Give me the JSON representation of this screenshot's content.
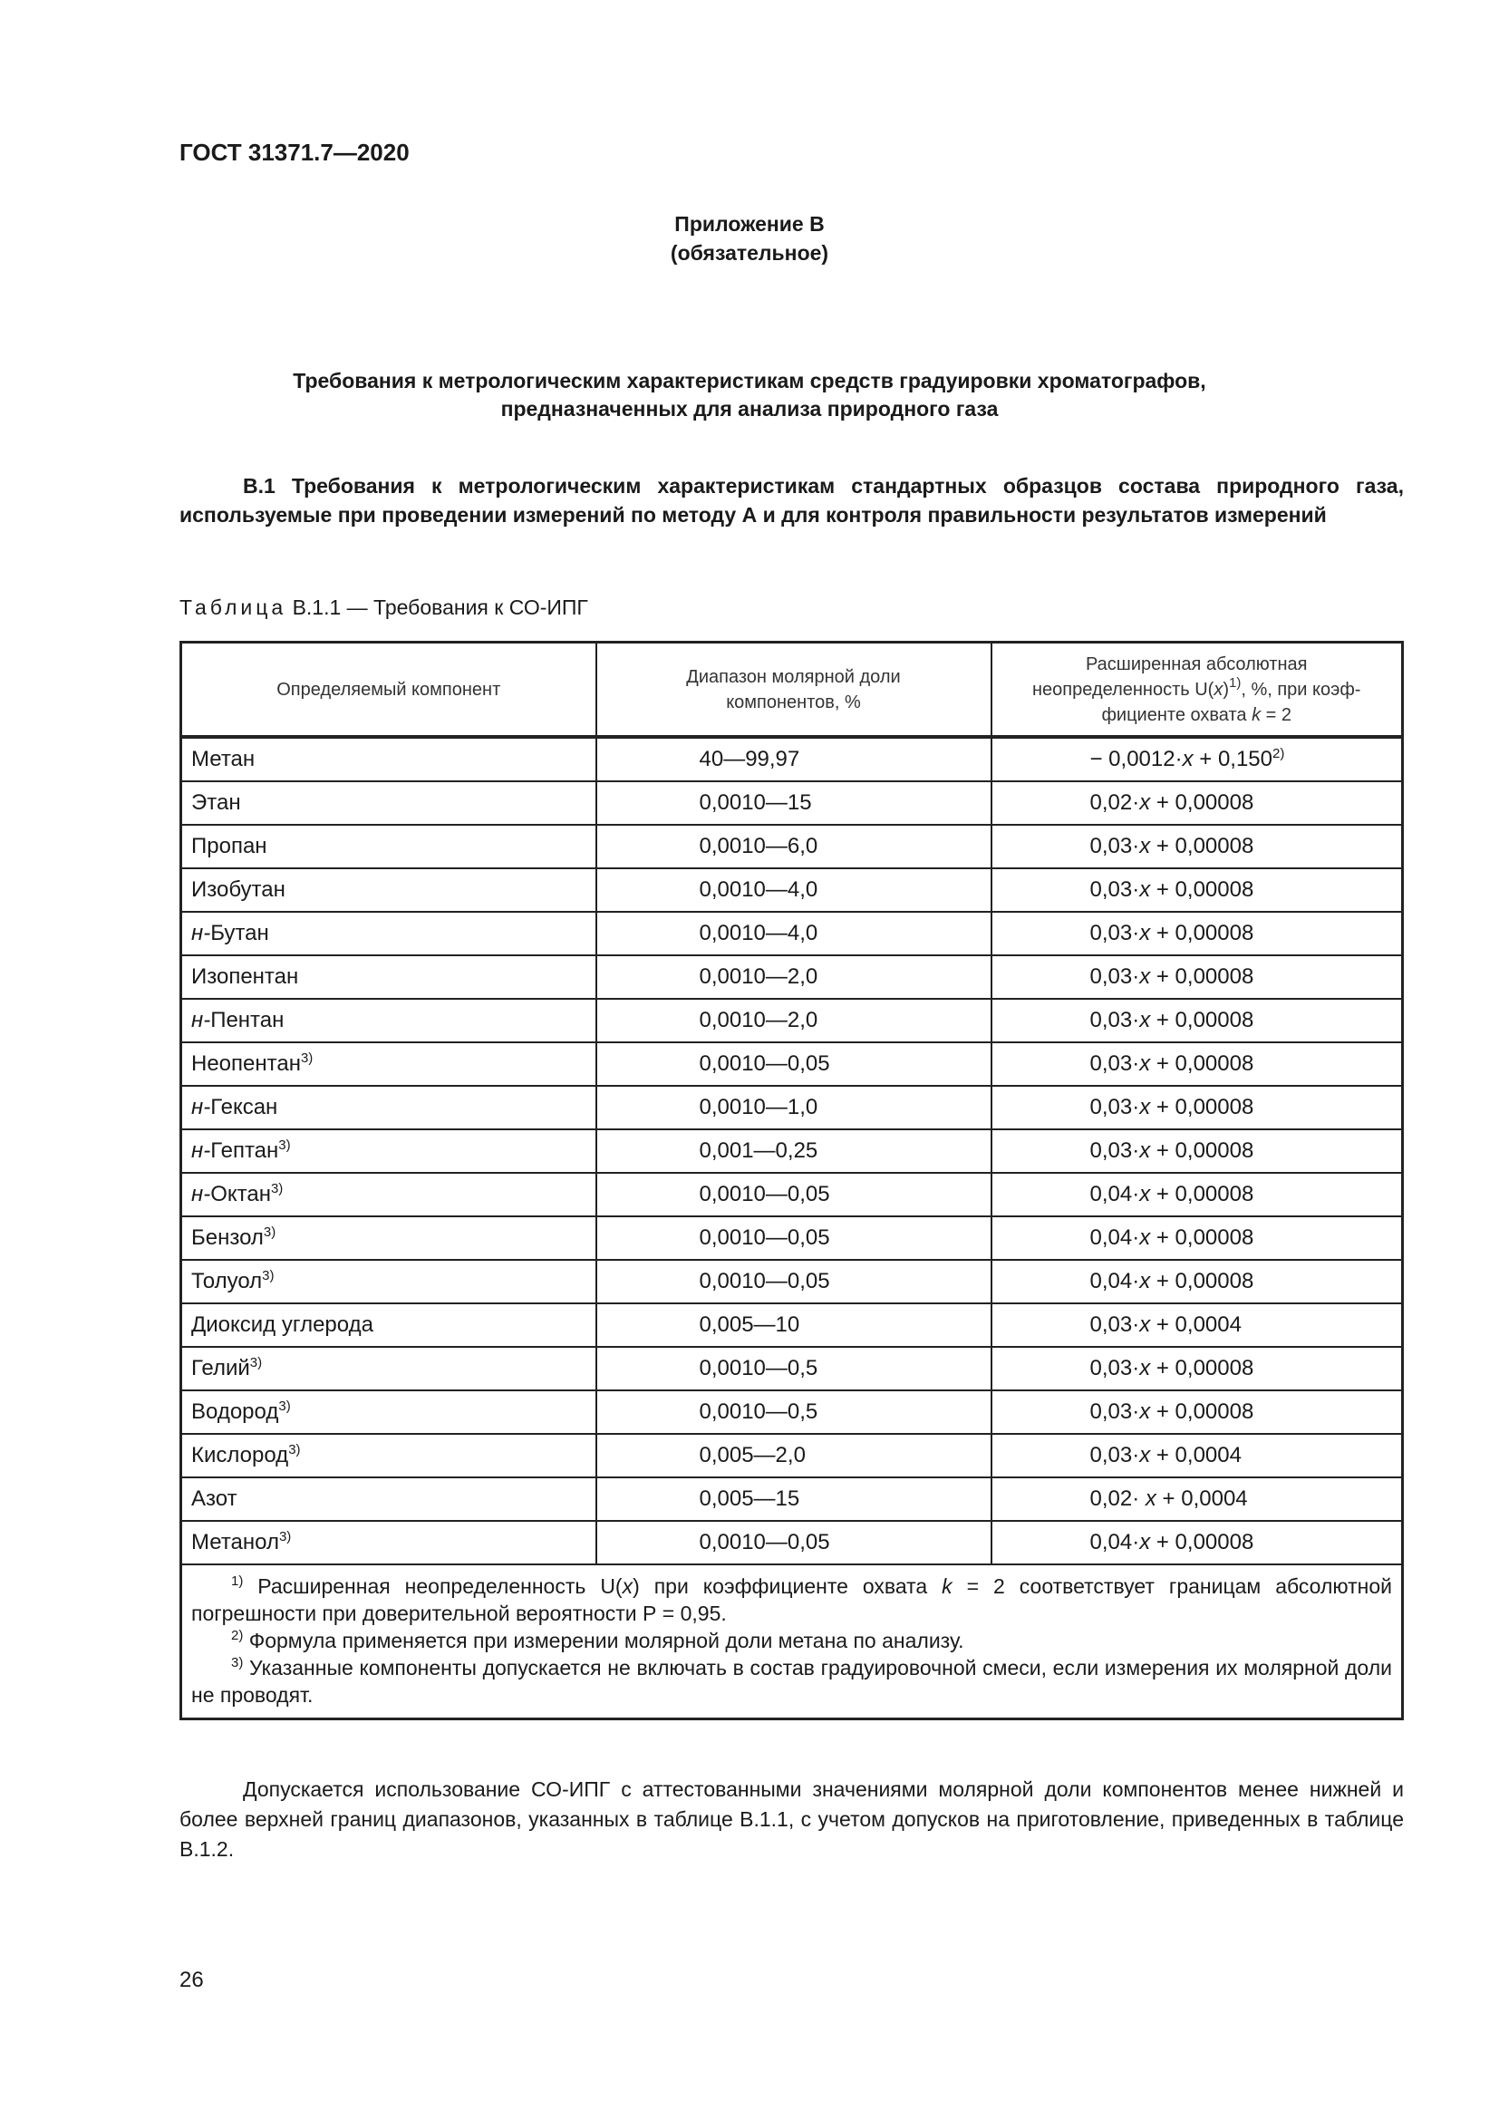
{
  "header": {
    "doc_id": "ГОСТ 31371.7—2020"
  },
  "annex": {
    "title": "Приложение В",
    "status": "(обязательное)"
  },
  "heading": "Требования к метрологическим характеристикам средств градуировки хроматографов, предназначенных для анализа природного газа",
  "section_b1": "В.1 Требования к метрологическим характеристикам стандартных образцов состава природного газа, используемые при проведении измерений по методу А и для контроля правильности результатов измерений",
  "table": {
    "caption_prefix": "Таблица",
    "caption_rest": " В.1.1 — Требования к СО-ИПГ",
    "headers": {
      "col1": "Определяемый компонент",
      "col2": "Диапазон молярной доли компонентов, %",
      "col3_a": "Расширенная абсолютная неопределенность U(",
      "col3_var": "x",
      "col3_b": ")",
      "col3_sup": "1)",
      "col3_c": ", %, при коэф­фициенте охвата ",
      "col3_k": "k",
      "col3_d": " = 2"
    },
    "rows": [
      {
        "prefix": "",
        "name": "Метан",
        "sup": "",
        "range": "40—99,97",
        "coef": "− 0,0012·",
        "var": "x",
        "rest": " + 0,150",
        "fsup": "2)"
      },
      {
        "prefix": "",
        "name": "Этан",
        "sup": "",
        "range": "0,0010—15",
        "coef": "0,02·",
        "var": "x",
        "rest": " + 0,00008",
        "fsup": ""
      },
      {
        "prefix": "",
        "name": "Пропан",
        "sup": "",
        "range": "0,0010—6,0",
        "coef": "0,03·",
        "var": "x",
        "rest": " + 0,00008",
        "fsup": ""
      },
      {
        "prefix": "",
        "name": "Изобутан",
        "sup": "",
        "range": "0,0010—4,0",
        "coef": "0,03·",
        "var": "x",
        "rest": " + 0,00008",
        "fsup": ""
      },
      {
        "prefix": "н-",
        "name": "Бутан",
        "sup": "",
        "range": "0,0010—4,0",
        "coef": "0,03·",
        "var": "x",
        "rest": " + 0,00008",
        "fsup": ""
      },
      {
        "prefix": "",
        "name": "Изопентан",
        "sup": "",
        "range": "0,0010—2,0",
        "coef": "0,03·",
        "var": "x",
        "rest": " + 0,00008",
        "fsup": ""
      },
      {
        "prefix": "н-",
        "name": "Пентан",
        "sup": "",
        "range": "0,0010—2,0",
        "coef": "0,03·",
        "var": "x",
        "rest": " + 0,00008",
        "fsup": ""
      },
      {
        "prefix": "",
        "name": "Неопентан",
        "sup": "3)",
        "range": "0,0010—0,05",
        "coef": "0,03·",
        "var": "x",
        "rest": " + 0,00008",
        "fsup": ""
      },
      {
        "prefix": "н-",
        "name": "Гексан",
        "sup": "",
        "range": "0,0010—1,0",
        "coef": "0,03·",
        "var": "x",
        "rest": " + 0,00008",
        "fsup": ""
      },
      {
        "prefix": "н-",
        "name": "Гептан",
        "sup": "3)",
        "range": "0,001—0,25",
        "coef": "0,03·",
        "var": "x",
        "rest": " + 0,00008",
        "fsup": ""
      },
      {
        "prefix": "н-",
        "name": "Октан",
        "sup": "3)",
        "range": "0,0010—0,05",
        "coef": "0,04·",
        "var": "x",
        "rest": " + 0,00008",
        "fsup": ""
      },
      {
        "prefix": "",
        "name": "Бензол",
        "sup": "3)",
        "range": "0,0010—0,05",
        "coef": "0,04·",
        "var": "x",
        "rest": " + 0,00008",
        "fsup": ""
      },
      {
        "prefix": "",
        "name": "Толуол",
        "sup": "3)",
        "range": "0,0010—0,05",
        "coef": "0,04·",
        "var": "x",
        "rest": " + 0,00008",
        "fsup": ""
      },
      {
        "prefix": "",
        "name": "Диоксид углерода",
        "sup": "",
        "range": "0,005—10",
        "coef": "0,03·",
        "var": "x",
        "rest": " + 0,0004",
        "fsup": ""
      },
      {
        "prefix": "",
        "name": "Гелий",
        "sup": "3)",
        "range": "0,0010—0,5",
        "coef": "0,03·",
        "var": "x",
        "rest": " + 0,00008",
        "fsup": ""
      },
      {
        "prefix": "",
        "name": "Водород",
        "sup": "3)",
        "range": "0,0010—0,5",
        "coef": "0,03·",
        "var": "x",
        "rest": " + 0,00008",
        "fsup": ""
      },
      {
        "prefix": "",
        "name": "Кислород",
        "sup": "3)",
        "range": "0,005—2,0",
        "coef": "0,03·",
        "var": "x",
        "rest": " + 0,0004",
        "fsup": ""
      },
      {
        "prefix": "",
        "name": "Азот",
        "sup": "",
        "range": "0,005—15",
        "coef": "0,02· ",
        "var": "x",
        "rest": " + 0,0004",
        "fsup": ""
      },
      {
        "prefix": "",
        "name": "Метанол",
        "sup": "3)",
        "range": "0,0010—0,05",
        "coef": "0,04·",
        "var": "x",
        "rest": " + 0,00008",
        "fsup": ""
      }
    ],
    "notes": {
      "n1_mark": "1)",
      "n1_a": " Расширенная неопределенность U(",
      "n1_var": "x",
      "n1_b": ") при коэффициенте охвата ",
      "n1_k": "k",
      "n1_c": " = 2 соответствует границам абсолютной погрешности при доверительной вероятности Р = 0,95.",
      "n2_mark": "2)",
      "n2": " Формула применяется при измерении молярной доли метана по анализу.",
      "n3_mark": "3)",
      "n3": " Указанные компоненты допускается не включать в состав градуировочной смеси, если измерения их молярной доли не проводят."
    }
  },
  "paragraph": "Допускается использование СО-ИПГ с аттестованными значениями молярной доли компонентов менее ниж­ней и более верхней границ диапазонов, указанных в таблице В.1.1, с учетом допусков на приготовление, приве­денных в таблице В.1.2.",
  "page_number": "26"
}
